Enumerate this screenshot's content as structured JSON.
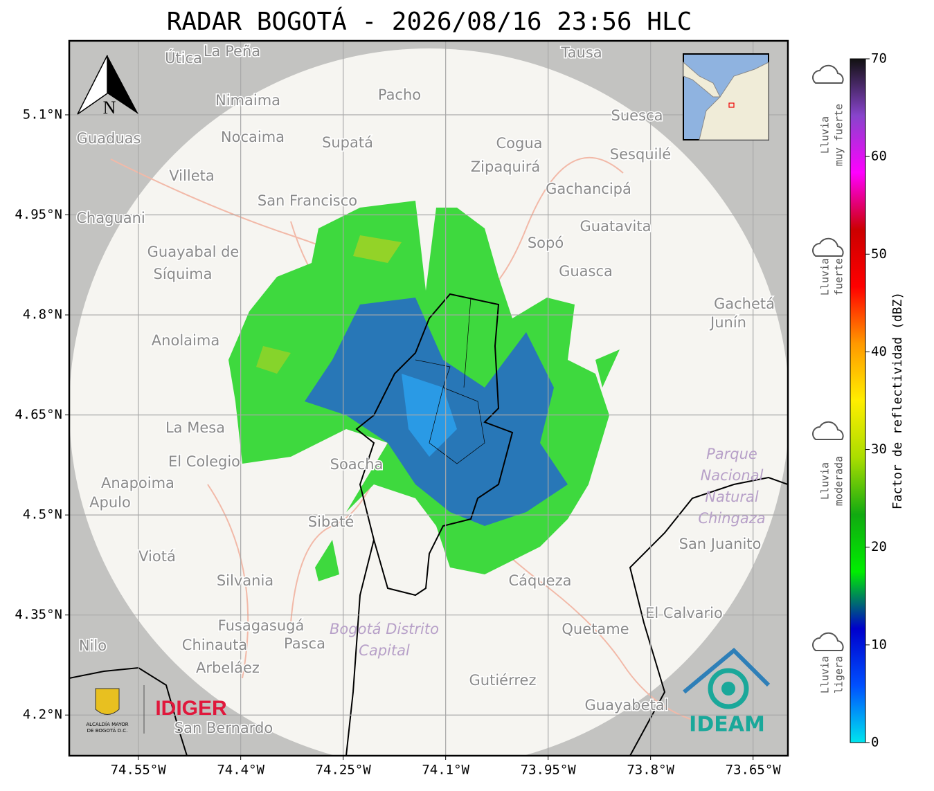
{
  "title": "RADAR BOGOTÁ - 2026/08/16 23:56 HLC",
  "map": {
    "xlim": [
      -74.651,
      -73.599
    ],
    "ylim": [
      4.139,
      5.211
    ],
    "xticks": [
      {
        "value": -74.55,
        "label": "74.55°W"
      },
      {
        "value": -74.4,
        "label": "74.4°W"
      },
      {
        "value": -74.25,
        "label": "74.25°W"
      },
      {
        "value": -74.1,
        "label": "74.1°W"
      },
      {
        "value": -73.95,
        "label": "73.95°W"
      },
      {
        "value": -73.8,
        "label": "73.8°W"
      },
      {
        "value": -73.65,
        "label": "73.65°W"
      }
    ],
    "yticks": [
      {
        "value": 5.1,
        "label": "5.1°N"
      },
      {
        "value": 4.95,
        "label": "4.95°N"
      },
      {
        "value": 4.8,
        "label": "4.8°N"
      },
      {
        "value": 4.65,
        "label": "4.65°N"
      },
      {
        "value": 4.5,
        "label": "4.5°N"
      },
      {
        "value": 4.35,
        "label": "4.35°N"
      },
      {
        "value": 4.2,
        "label": "4.2°N"
      }
    ],
    "grid": true,
    "north": "N",
    "places": [
      "Útica",
      "La Peña",
      "Tausa",
      "Pacho",
      "Nimaima",
      "Guaduas",
      "Nocaima",
      "Supatá",
      "Cogua",
      "Suesca",
      "Sesquilé",
      "Zipaquirá",
      "Villeta",
      "Gachancipá",
      "San Francisco",
      "Chaguani",
      "Guatavita",
      "Sopó",
      "Guayabal de",
      "Síquima",
      "Guasca",
      "Gachetá",
      "Junín",
      "Anolaima",
      "La Mesa",
      "El Colegio",
      "Soacha",
      "Anapoima",
      "Apulo",
      "Sibaté",
      "Viotá",
      "Silvania",
      "Cáqueza",
      "San Juanito",
      "El Calvario",
      "Fusagasugá",
      "Quetame",
      "Chinauta",
      "Pasca",
      "Nilo",
      "Arbeláez",
      "Gutiérrez",
      "Guayabetal",
      "San Bernardo"
    ],
    "regions": [
      "Bogotá Distrito",
      "Capital",
      "Parque",
      "Nacional",
      "Natural",
      "Chingaza"
    ]
  },
  "colorbar": {
    "label": "Factor de reflectividad (dBZ)",
    "lim": [
      0,
      70
    ],
    "ticks": [
      0,
      10,
      20,
      30,
      40,
      50,
      60,
      70
    ],
    "colors": [
      "#00e5ee",
      "#0050ff",
      "#0000cc",
      "#00ee00",
      "#11aa11",
      "#aadd00",
      "#ffee00",
      "#ff9900",
      "#ff0000",
      "#cc0000",
      "#ff00ff",
      "#8844cc",
      "#111111"
    ]
  },
  "rain_levels": [
    [
      "Lluvia",
      "muy fuerte"
    ],
    [
      "Lluvia",
      "fuerte"
    ],
    [
      "Lluvia",
      "moderada"
    ],
    [
      "Lluvia",
      "ligera"
    ]
  ],
  "logos": {
    "idiger": "IDIGER",
    "ideam": "IDEAM",
    "alcaldia": [
      "ALCALDÍA MAYOR",
      "DE BOGOTÁ D.C."
    ]
  }
}
